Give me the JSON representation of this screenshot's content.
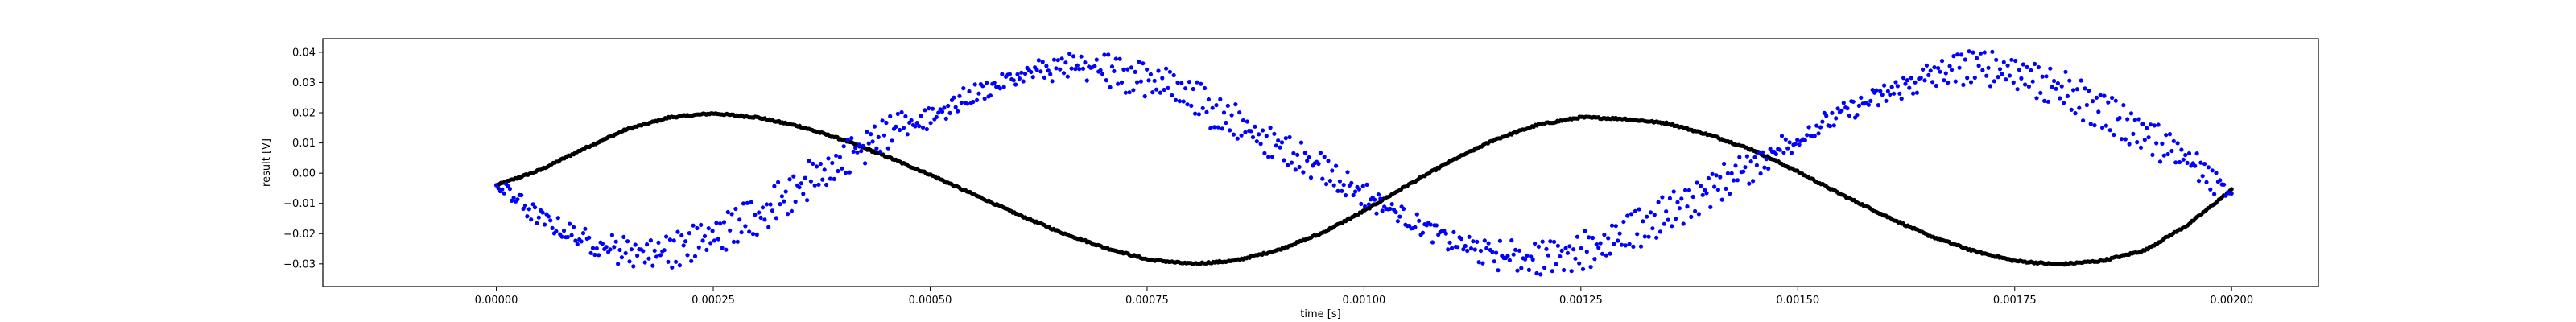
{
  "chart_data": {
    "type": "scatter",
    "title": "",
    "xlabel": "time [s]",
    "ylabel": "result [V]",
    "xlim": [
      -0.0002,
      0.0021
    ],
    "ylim": [
      -0.0375,
      0.0445
    ],
    "grid": false,
    "x_ticks": [
      {
        "value": 0.0,
        "label": "0.00000"
      },
      {
        "value": 0.00025,
        "label": "0.00025"
      },
      {
        "value": 0.0005,
        "label": "0.00050"
      },
      {
        "value": 0.00075,
        "label": "0.00075"
      },
      {
        "value": 0.001,
        "label": "0.00100"
      },
      {
        "value": 0.00125,
        "label": "0.00125"
      },
      {
        "value": 0.0015,
        "label": "0.00150"
      },
      {
        "value": 0.00175,
        "label": "0.00175"
      },
      {
        "value": 0.002,
        "label": "0.00200"
      }
    ],
    "y_ticks": [
      {
        "value": -0.03,
        "label": "−0.03"
      },
      {
        "value": -0.02,
        "label": "−0.02"
      },
      {
        "value": -0.01,
        "label": "−0.01"
      },
      {
        "value": 0.0,
        "label": "0.00"
      },
      {
        "value": 0.01,
        "label": "0.01"
      },
      {
        "value": 0.02,
        "label": "0.02"
      },
      {
        "value": 0.03,
        "label": "0.03"
      },
      {
        "value": 0.04,
        "label": "0.04"
      }
    ],
    "series": [
      {
        "color": "#000000",
        "marker_size": 2.6,
        "points": [
          [
            0.0,
            -0.004
          ],
          [
            5e-05,
            0.001
          ],
          [
            0.0001,
            0.008
          ],
          [
            0.00015,
            0.0145
          ],
          [
            0.0002,
            0.0185
          ],
          [
            0.00025,
            0.0198
          ],
          [
            0.0003,
            0.0185
          ],
          [
            0.00035,
            0.0155
          ],
          [
            0.0004,
            0.011
          ],
          [
            0.00045,
            0.0055
          ],
          [
            0.0005,
            -0.0005
          ],
          [
            0.00055,
            -0.007
          ],
          [
            0.0006,
            -0.0135
          ],
          [
            0.00065,
            -0.0195
          ],
          [
            0.0007,
            -0.0245
          ],
          [
            0.00075,
            -0.0285
          ],
          [
            0.0008,
            -0.03
          ],
          [
            0.00085,
            -0.029
          ],
          [
            0.0009,
            -0.0255
          ],
          [
            0.00095,
            -0.02
          ],
          [
            0.001,
            -0.0125
          ],
          [
            0.00105,
            -0.004
          ],
          [
            0.0011,
            0.004
          ],
          [
            0.00115,
            0.011
          ],
          [
            0.0012,
            0.016
          ],
          [
            0.00125,
            0.0185
          ],
          [
            0.0013,
            0.018
          ],
          [
            0.00135,
            0.0165
          ],
          [
            0.0014,
            0.0125
          ],
          [
            0.00145,
            0.0075
          ],
          [
            0.0015,
            0.0005
          ],
          [
            0.00155,
            -0.007
          ],
          [
            0.0016,
            -0.014
          ],
          [
            0.00165,
            -0.0205
          ],
          [
            0.0017,
            -0.0255
          ],
          [
            0.00175,
            -0.029
          ],
          [
            0.0018,
            -0.0302
          ],
          [
            0.00185,
            -0.029
          ],
          [
            0.0019,
            -0.0255
          ],
          [
            0.00195,
            -0.017
          ],
          [
            0.002,
            -0.0055
          ]
        ]
      },
      {
        "color": "#0000ff",
        "marker_size": 2.6,
        "points": [
          [
            0.0,
            -0.003
          ],
          [
            5e-05,
            -0.015
          ],
          [
            0.0001,
            -0.022
          ],
          [
            0.00015,
            -0.026
          ],
          [
            0.0002,
            -0.0255
          ],
          [
            0.00025,
            -0.021
          ],
          [
            0.0003,
            -0.014
          ],
          [
            0.00035,
            -0.004
          ],
          [
            0.0004,
            0.005
          ],
          [
            0.00045,
            0.013
          ],
          [
            0.0005,
            0.019
          ],
          [
            0.00055,
            0.026
          ],
          [
            0.0006,
            0.032
          ],
          [
            0.00065,
            0.035
          ],
          [
            0.0007,
            0.0345
          ],
          [
            0.00075,
            0.031
          ],
          [
            0.0008,
            0.0255
          ],
          [
            0.00085,
            0.017
          ],
          [
            0.0009,
            0.009
          ],
          [
            0.00095,
            0.002
          ],
          [
            0.001,
            -0.007
          ],
          [
            0.00105,
            -0.015
          ],
          [
            0.0011,
            -0.0225
          ],
          [
            0.00115,
            -0.027
          ],
          [
            0.0012,
            -0.028
          ],
          [
            0.00125,
            -0.0255
          ],
          [
            0.0013,
            -0.021
          ],
          [
            0.00135,
            -0.0135
          ],
          [
            0.0014,
            -0.005
          ],
          [
            0.00145,
            0.003
          ],
          [
            0.0015,
            0.0115
          ],
          [
            0.00155,
            0.0195
          ],
          [
            0.0016,
            0.026
          ],
          [
            0.00165,
            0.032
          ],
          [
            0.0017,
            0.0355
          ],
          [
            0.00175,
            0.034
          ],
          [
            0.0018,
            0.028
          ],
          [
            0.00185,
            0.021
          ],
          [
            0.0019,
            0.013
          ],
          [
            0.00195,
            0.004
          ],
          [
            0.002,
            -0.006
          ]
        ]
      }
    ]
  }
}
